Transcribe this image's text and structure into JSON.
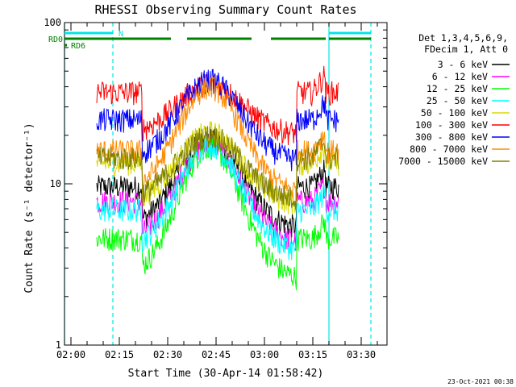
{
  "chart_data": {
    "type": "line",
    "title": "RHESSI Observing Summary Count Rates",
    "xlabel": "Start Time (30-Apr-14 01:58:42)",
    "ylabel": "Count Rate (s⁻¹ detector⁻¹)",
    "yscale": "log",
    "ylim": [
      1,
      100
    ],
    "x_range": [
      "01:58",
      "03:38"
    ],
    "x_ticks": [
      "02:00",
      "02:15",
      "02:30",
      "02:45",
      "03:00",
      "03:15",
      "03:30"
    ],
    "y_ticks": [
      "1",
      "10",
      "100"
    ],
    "legend_header": [
      "Det 1,3,4,5,6,9,",
      "FDecim 1, Att 0"
    ],
    "legend_position": "right",
    "data_start": "02:08",
    "data_end": "03:23",
    "series": [
      {
        "name": "3 - 6 keV",
        "color": "#000000",
        "night": 9.6,
        "day": 12.5,
        "peak": 19
      },
      {
        "name": "6 - 12 keV",
        "color": "#ff00ff",
        "night": 7.8,
        "day": 10.5,
        "peak": 18
      },
      {
        "name": "12 - 25 keV",
        "color": "#00ff00",
        "night": 4.6,
        "day": 5.5,
        "peak": 17
      },
      {
        "name": "25 - 50 keV",
        "color": "#00ffff",
        "night": 6.9,
        "day": 7.5,
        "peak": 17.5
      },
      {
        "name": "50 - 100 keV",
        "color": "#d9d900",
        "night": 13.5,
        "day": 13.5,
        "peak": 21
      },
      {
        "name": "100 - 300 keV",
        "color": "#ff0000",
        "night": 37,
        "day": 40,
        "peak": 42
      },
      {
        "name": "300 - 800 keV",
        "color": "#0000ff",
        "night": 25,
        "day": 29,
        "peak": 44
      },
      {
        "name": "800 - 7000 keV",
        "color": "#ff8c00",
        "night": 16,
        "day": 17,
        "peak": 40
      },
      {
        "name": "7000 - 15000 keV",
        "color": "#808000",
        "night": 14.5,
        "day": 15,
        "peak": 20
      }
    ],
    "flags": [
      {
        "label": "N",
        "color": "#00e5e5",
        "segments": [
          [
            "01:58",
            "02:13"
          ],
          [
            "03:20",
            "03:33"
          ]
        ]
      },
      {
        "label": "RD0",
        "color": "#008000",
        "segments": [
          [
            "01:58",
            "02:31"
          ],
          [
            "02:36",
            "02:56"
          ],
          [
            "03:02",
            "03:19"
          ],
          [
            "03:20",
            "03:33"
          ]
        ]
      },
      {
        "label": "RD6",
        "color": "#008000",
        "segments": [
          [
            "01:58",
            "01:58"
          ]
        ]
      }
    ],
    "vlines": [
      {
        "time": "01:58",
        "color": "#00e5e5",
        "style": "solid"
      },
      {
        "time": "02:13",
        "color": "#00e5e5",
        "style": "dashed"
      },
      {
        "time": "03:20",
        "color": "#00e5e5",
        "style": "solid"
      },
      {
        "time": "03:33",
        "color": "#00e5e5",
        "style": "dashed"
      }
    ],
    "timestamp": "23-Oct-2021 00:38"
  }
}
